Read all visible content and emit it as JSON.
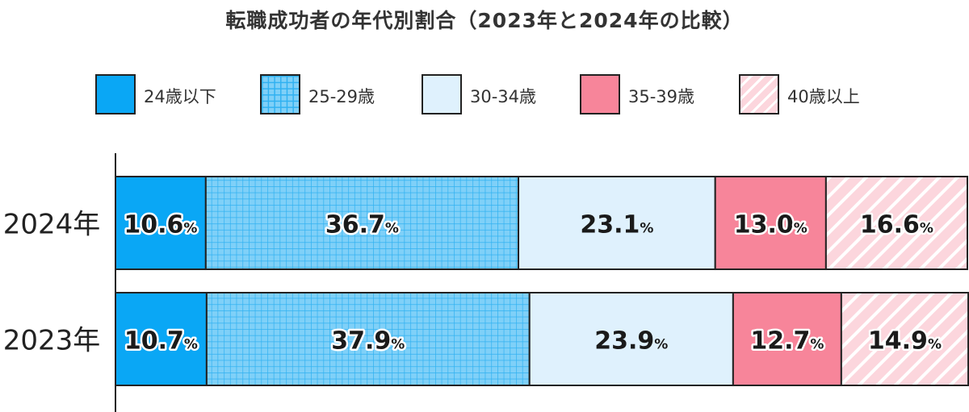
{
  "chart_data": {
    "type": "stacked-bar-100-horizontal",
    "title": "転職成功者の年代別割合（2023年と2024年の比較）",
    "categories": [
      "2024年",
      "2023年"
    ],
    "unit": "%",
    "series": [
      {
        "name": "24歳以下",
        "values": [
          10.6,
          10.7
        ],
        "color": "#0aa7f5",
        "fill": "solid",
        "label_style": "white-outline"
      },
      {
        "name": "25-29歳",
        "values": [
          36.7,
          37.9
        ],
        "color": "#6cc8f6",
        "fill": "grid",
        "label_style": "white-outline"
      },
      {
        "name": "30-34歳",
        "values": [
          23.1,
          23.9
        ],
        "color": "#dff1fd",
        "fill": "solid",
        "label_style": "plain"
      },
      {
        "name": "35-39歳",
        "values": [
          13.0,
          12.7
        ],
        "color": "#f7859a",
        "fill": "solid",
        "label_style": "white-outline"
      },
      {
        "name": "40歳以上",
        "values": [
          16.6,
          14.9
        ],
        "color": "#fcd4db",
        "fill": "diagonal",
        "label_style": "white-outline"
      }
    ],
    "legend_position": "top",
    "grid": false
  }
}
